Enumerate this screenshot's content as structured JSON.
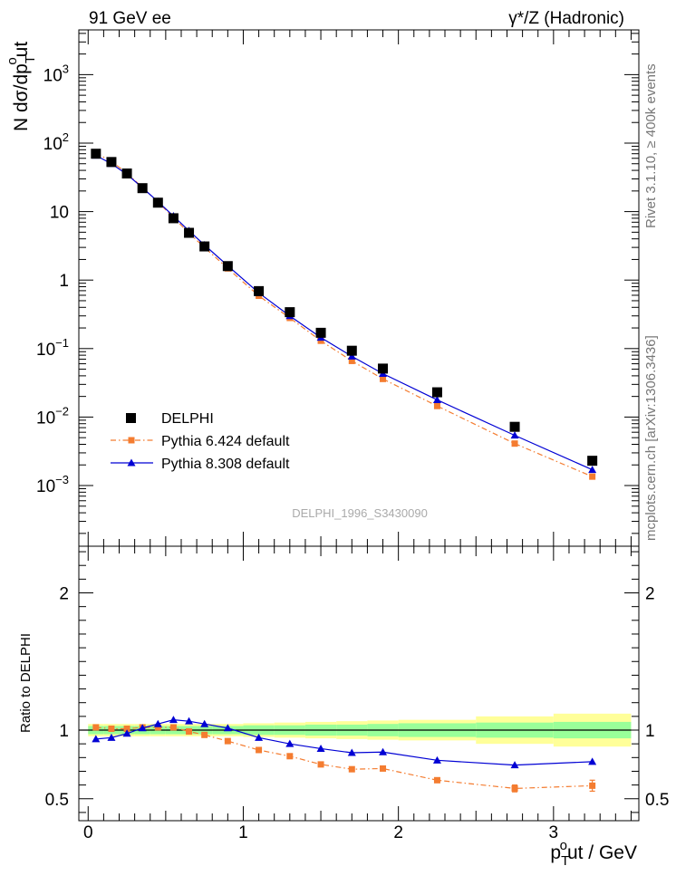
{
  "header": {
    "left": "91 GeV ee",
    "right": "γ*/Z (Hadronic)"
  },
  "side_labels": {
    "rivet": "Rivet 3.1.10, ≥ 400k events",
    "mcplots": "mcplots.cern.ch [arXiv:1306.3436]"
  },
  "watermark": "DELPHI_1996_S3430090",
  "chart_data": [
    {
      "type": "scatter",
      "panel": "main",
      "yscale": "log",
      "xlim": [
        -0.06,
        3.55
      ],
      "ylim": [
        0.00013,
        4500
      ],
      "ylabel": "N dσ/dp",
      "ylabel_sup": "o",
      "ylabel_sub": "T",
      "ylabel_tail": "ut",
      "yticks": [
        {
          "value": 0.001,
          "base": "10",
          "exp": "−3"
        },
        {
          "value": 0.01,
          "base": "10",
          "exp": "−2"
        },
        {
          "value": 0.1,
          "base": "10",
          "exp": "−1"
        },
        {
          "value": 1,
          "base": "1",
          "exp": ""
        },
        {
          "value": 10,
          "base": "10",
          "exp": ""
        },
        {
          "value": 100,
          "base": "10",
          "exp": "2"
        },
        {
          "value": 1000,
          "base": "10",
          "exp": "3"
        }
      ],
      "x": [
        0.05,
        0.15,
        0.25,
        0.35,
        0.45,
        0.55,
        0.65,
        0.75,
        0.9,
        1.1,
        1.3,
        1.5,
        1.7,
        1.9,
        2.25,
        2.75,
        3.25
      ],
      "series": [
        {
          "name": "DELPHI",
          "style": "marker",
          "color": "#000000",
          "values": [
            70,
            53,
            36,
            22,
            13.5,
            8.0,
            4.9,
            3.1,
            1.6,
            0.69,
            0.34,
            0.17,
            0.093,
            0.051,
            0.023,
            0.0072,
            0.0023
          ]
        },
        {
          "name": "Pythia 6.424 default",
          "style": "dashdot",
          "color": "#f47c30",
          "values": [
            72,
            54,
            36.5,
            22.5,
            13.8,
            8.2,
            4.85,
            3.0,
            1.48,
            0.59,
            0.28,
            0.13,
            0.066,
            0.036,
            0.0145,
            0.0041,
            0.00135
          ]
        },
        {
          "name": "Pythia 8.308 default",
          "style": "line",
          "color": "#0000d4",
          "values": [
            66,
            50,
            35,
            22.3,
            14.0,
            8.6,
            5.25,
            3.25,
            1.62,
            0.65,
            0.3,
            0.145,
            0.077,
            0.043,
            0.0178,
            0.0054,
            0.0017
          ]
        }
      ]
    },
    {
      "type": "line",
      "panel": "ratio",
      "xlim": [
        -0.06,
        3.55
      ],
      "ylim": [
        0.34,
        2.34
      ],
      "ylabel": "Ratio to DELPHI",
      "xlabel": "p",
      "xlabel_sup": "o",
      "xlabel_sub": "T",
      "xlabel_tail": "ut / GeV",
      "yticks": [
        0.5,
        1,
        2
      ],
      "xticks": [
        0,
        1,
        2,
        3
      ],
      "x": [
        0.05,
        0.15,
        0.25,
        0.35,
        0.45,
        0.55,
        0.65,
        0.75,
        0.9,
        1.1,
        1.3,
        1.5,
        1.7,
        1.9,
        2.25,
        2.75,
        3.25
      ],
      "band_edges": [
        0,
        0.1,
        0.2,
        0.3,
        0.4,
        0.5,
        0.6,
        0.7,
        0.8,
        1.0,
        1.2,
        1.4,
        1.6,
        1.8,
        2.0,
        2.5,
        3.0,
        3.5
      ],
      "band_inner": [
        0.03,
        0.03,
        0.03,
        0.03,
        0.03,
        0.03,
        0.03,
        0.03,
        0.03,
        0.035,
        0.035,
        0.04,
        0.04,
        0.045,
        0.05,
        0.055,
        0.06
      ],
      "band_outer": [
        0.045,
        0.045,
        0.045,
        0.045,
        0.045,
        0.045,
        0.045,
        0.045,
        0.045,
        0.05,
        0.055,
        0.06,
        0.065,
        0.07,
        0.075,
        0.1,
        0.12
      ],
      "series": [
        {
          "name": "Pythia 6.424 default",
          "style": "dashdot",
          "color": "#f47c30",
          "values": [
            1.02,
            1.01,
            1.01,
            1.02,
            1.02,
            1.02,
            0.99,
            0.965,
            0.92,
            0.855,
            0.81,
            0.75,
            0.715,
            0.72,
            0.635,
            0.575,
            0.595
          ],
          "errors": [
            0,
            0,
            0,
            0,
            0,
            0,
            0,
            0,
            0,
            0,
            0,
            0,
            0,
            0,
            0,
            0.025,
            0.04
          ]
        },
        {
          "name": "Pythia 8.308 default",
          "style": "line",
          "color": "#0000d4",
          "values": [
            0.935,
            0.945,
            0.975,
            1.015,
            1.045,
            1.075,
            1.065,
            1.045,
            1.015,
            0.945,
            0.9,
            0.865,
            0.835,
            0.84,
            0.78,
            0.745,
            0.77
          ],
          "errors": []
        }
      ]
    }
  ]
}
